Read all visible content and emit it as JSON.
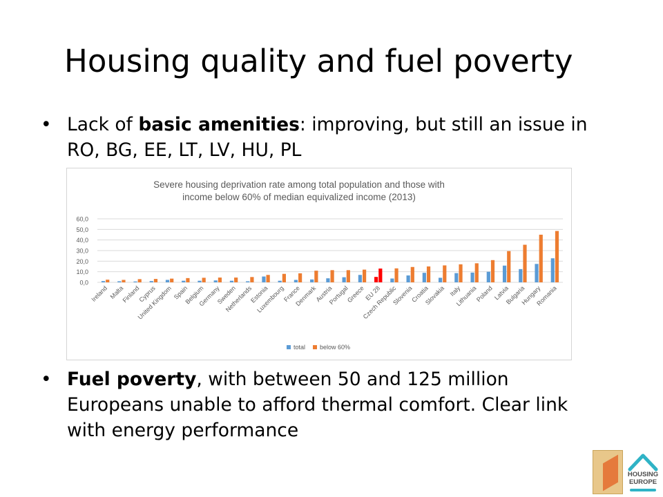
{
  "slide": {
    "title": "Housing quality and fuel poverty",
    "bullets": [
      {
        "plain_before": "Lack of ",
        "bold": "basic amenities",
        "plain_after": ": improving, but still an issue in RO, BG, EE, LT, LV, HU, PL"
      },
      {
        "plain_before": "",
        "bold": "Fuel poverty",
        "plain_after": ", with between 50 and 125 million Europeans unable to afford thermal comfort. Clear link with energy performance"
      }
    ],
    "bullet_symbol": "•"
  },
  "logo": {
    "line1": "HOUSING",
    "line2": "EUROPE"
  },
  "colors": {
    "total": "#5b9bd5",
    "below": "#ed7d31",
    "highlight": "#ff0000",
    "grid": "#d9d9d9",
    "text": "#595959"
  },
  "chart_data": {
    "type": "bar",
    "title_lines": [
      "Severe housing deprivation rate among total population and those with",
      "income below 60% of median equivalized income (2013)"
    ],
    "categories": [
      "Ireland",
      "Malta",
      "Finland",
      "Cyprus",
      "United Kingdom",
      "Spain",
      "Belgium",
      "Germany",
      "Sweden",
      "Netherlands",
      "Estonia",
      "Luxembourg",
      "France",
      "Denmark",
      "Austria",
      "Portugal",
      "Greece",
      "EU 28",
      "Czech Republic",
      "Slovenia",
      "Croatia",
      "Slovakia",
      "Italy",
      "Lithuania",
      "Poland",
      "Latvia",
      "Bulgaria",
      "Hungary",
      "Romania"
    ],
    "series": [
      {
        "name": "total",
        "values": [
          1.2,
          1.0,
          0.8,
          1.2,
          2.3,
          1.5,
          1.5,
          1.8,
          1.5,
          1.0,
          5.5,
          1.5,
          2.3,
          2.7,
          3.8,
          4.8,
          7.0,
          5.1,
          3.6,
          6.5,
          9.0,
          4.3,
          8.7,
          9.2,
          10.0,
          15.8,
          12.5,
          17.4,
          22.7
        ]
      },
      {
        "name": "below 60%",
        "values": [
          2.5,
          2.3,
          3.0,
          3.2,
          3.5,
          4.0,
          4.3,
          4.5,
          4.5,
          5.0,
          7.0,
          8.0,
          8.5,
          11.0,
          11.5,
          11.5,
          12.0,
          13.0,
          13.2,
          14.5,
          15.0,
          16.0,
          17.0,
          18.0,
          21.0,
          29.5,
          35.5,
          45.0,
          48.5
        ]
      }
    ],
    "highlight_category": "EU 28",
    "ylim": [
      0,
      60
    ],
    "yticks": [
      "0,0",
      "10,0",
      "20,0",
      "30,0",
      "40,0",
      "50,0",
      "60,0"
    ],
    "grid": true,
    "legend_position": "bottom"
  }
}
